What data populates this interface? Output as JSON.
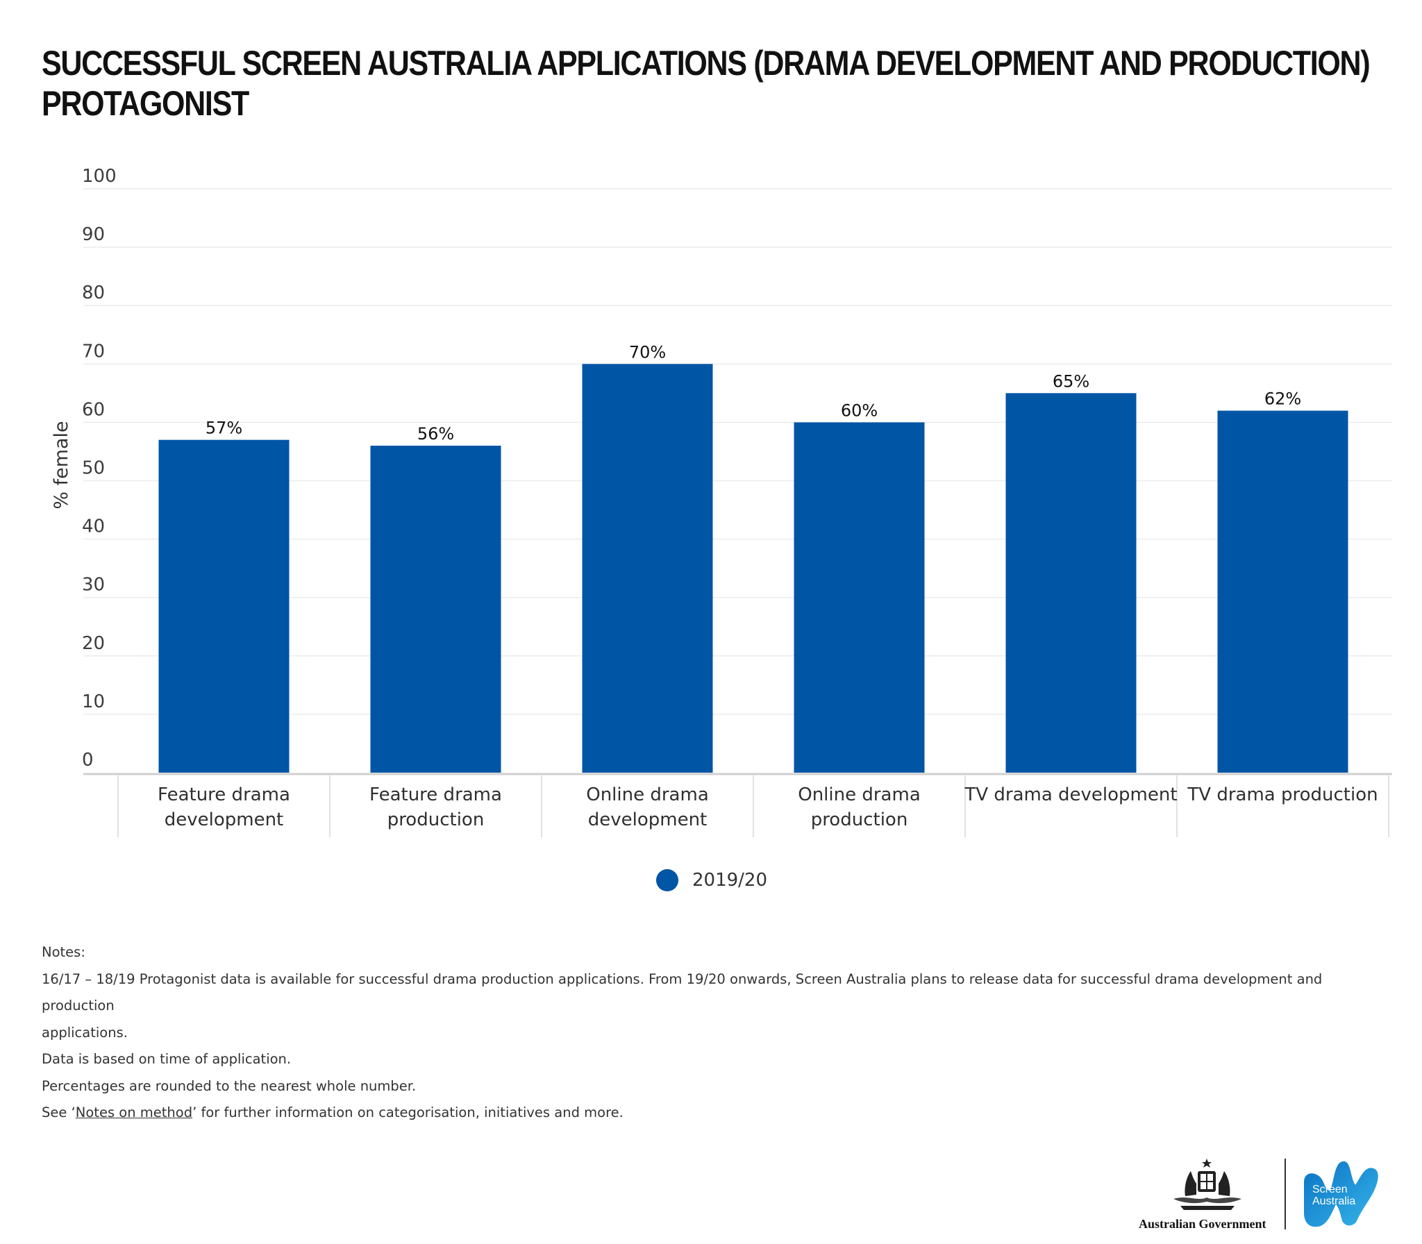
{
  "title_lines": [
    "SUCCESSFUL SCREEN AUSTRALIA APPLICATIONS (DRAMA DEVELOPMENT AND PRODUCTION)",
    "PROTAGONIST"
  ],
  "chart_data": {
    "type": "bar",
    "title": "SUCCESSFUL SCREEN AUSTRALIA APPLICATIONS (DRAMA DEVELOPMENT AND PRODUCTION) PROTAGONIST",
    "ylabel": "% female",
    "xlabel": "",
    "ylim": [
      0,
      100
    ],
    "yticks": [
      0,
      10,
      20,
      30,
      40,
      50,
      60,
      70,
      80,
      90,
      100
    ],
    "grid": true,
    "categories": [
      [
        "Feature drama",
        "development"
      ],
      [
        "Feature drama",
        "production"
      ],
      [
        "Online drama",
        "development"
      ],
      [
        "Online drama",
        "production"
      ],
      [
        "TV drama development"
      ],
      [
        "TV drama production"
      ]
    ],
    "series": [
      {
        "name": "2019/20",
        "color": "#0055a5",
        "values": [
          57,
          56,
          70,
          60,
          65,
          62
        ],
        "data_labels": [
          "57%",
          "56%",
          "70%",
          "60%",
          "65%",
          "62%"
        ]
      }
    ],
    "legend": {
      "position": "bottom-center",
      "entries": [
        "2019/20"
      ]
    }
  },
  "legend": {
    "label": "2019/20",
    "color": "#0055a5"
  },
  "notes": {
    "heading": "Notes:",
    "line1": "16/17 – 18/19 Protagonist data is available for successful drama production applications. From 19/20 onwards, Screen Australia plans to release data for successful drama development and production",
    "line1b": "applications.",
    "line2": "Data is based on time of application.",
    "line3": "Percentages are rounded to the nearest whole number.",
    "line4_prefix": "See ‘",
    "line4_link": "Notes on method",
    "line4_suffix": "’ for further information on categorisation, initiatives and more."
  },
  "logos": {
    "government": "Australian Government",
    "screen_australia_line1": "Screen",
    "screen_australia_line2": "Australia"
  }
}
